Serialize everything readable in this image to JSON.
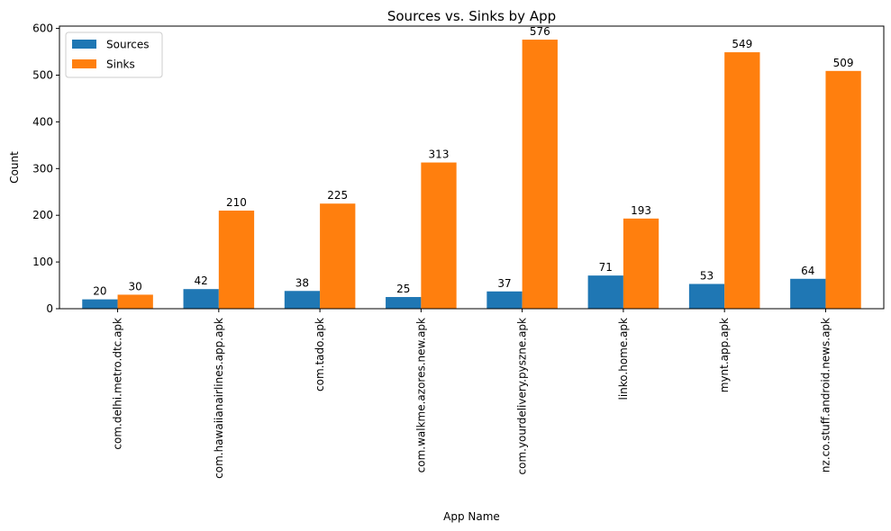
{
  "chart_data": {
    "type": "bar",
    "title": "Sources vs. Sinks by App",
    "xlabel": "App Name",
    "ylabel": "Count",
    "categories": [
      "com.delhi.metro.dtc.apk",
      "com.hawaiianairlines.app.apk",
      "com.tado.apk",
      "com.walkme.azores.new.apk",
      "com.yourdelivery.pyszne.apk",
      "linko.home.apk",
      "mynt.app.apk",
      "nz.co.stuff.android.news.apk"
    ],
    "series": [
      {
        "name": "Sources",
        "color": "#1f77b4",
        "values": [
          20,
          42,
          38,
          25,
          37,
          71,
          53,
          64
        ]
      },
      {
        "name": "Sinks",
        "color": "#ff7f0e",
        "values": [
          30,
          210,
          225,
          313,
          576,
          193,
          549,
          509
        ]
      }
    ],
    "ylim": [
      0,
      605
    ],
    "yticks": [
      0,
      100,
      200,
      300,
      400,
      500,
      600
    ],
    "legend": "top-left",
    "grid": false
  }
}
